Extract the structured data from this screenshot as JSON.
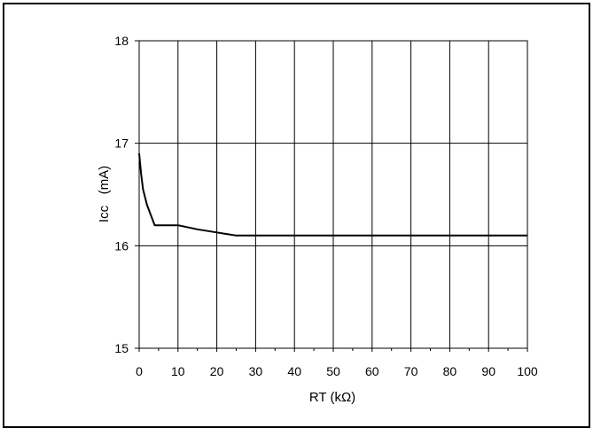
{
  "chart_data": {
    "type": "line",
    "title": "",
    "xlabel": "RT (kΩ)",
    "ylabel": "Icc   (mA)",
    "xlim": [
      0,
      100
    ],
    "ylim": [
      15,
      18
    ],
    "x_ticks": [
      0,
      10,
      20,
      30,
      40,
      50,
      60,
      70,
      80,
      90,
      100
    ],
    "y_ticks": [
      15,
      16,
      17,
      18
    ],
    "x_tick_labels": [
      "0",
      "10",
      "20",
      "30",
      "40",
      "50",
      "60",
      "70",
      "80",
      "90",
      "100"
    ],
    "y_tick_labels": [
      "15",
      "16",
      "17",
      "18"
    ],
    "grid": true,
    "legend": "none",
    "series": [
      {
        "x": [
          0,
          0.5,
          1,
          2,
          4,
          6,
          8,
          10,
          15,
          20,
          25,
          30,
          40,
          50,
          60,
          70,
          80,
          90,
          100
        ],
        "y": [
          16.9,
          16.7,
          16.55,
          16.4,
          16.2,
          16.2,
          16.2,
          16.2,
          16.16,
          16.13,
          16.1,
          16.1,
          16.1,
          16.1,
          16.1,
          16.1,
          16.1,
          16.1,
          16.1
        ]
      }
    ],
    "colors": {
      "line": "#000000",
      "grid": "#000000",
      "frame": "#000000",
      "background": "#ffffff"
    }
  }
}
